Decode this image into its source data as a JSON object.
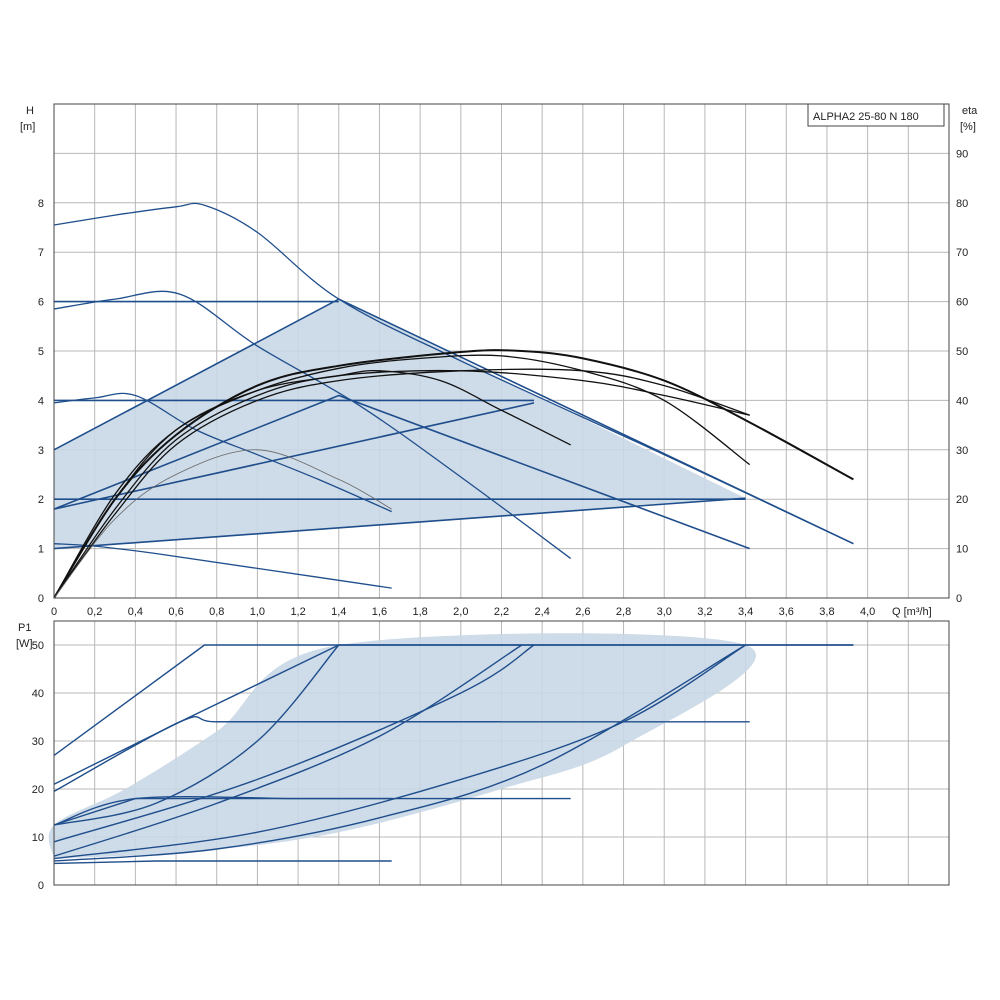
{
  "colors": {
    "grid": "#b8b8b8",
    "frame": "#444444",
    "curve": "#1f4e8c",
    "region_fill": "#c9d7e6",
    "efficiency": "#111111"
  },
  "legend_label": "ALPHA2 25-80 N 180",
  "chart_data": [
    {
      "type": "line",
      "xlabel": "Q [m³/h]",
      "ylabel_left": "H",
      "ylabel_left_unit": "[m]",
      "ylabel_right": "eta",
      "ylabel_right_unit": "[%]",
      "xlim": [
        0,
        4.4
      ],
      "ylim": [
        0,
        10
      ],
      "ylim_right": [
        0,
        100
      ],
      "x_ticks": [
        "0",
        "0,2",
        "0,4",
        "0,6",
        "0,8",
        "1,0",
        "1,2",
        "1,4",
        "1,6",
        "1,8",
        "2,0",
        "2,2",
        "2,4",
        "2,6",
        "2,8",
        "3,0",
        "3,2",
        "3,4",
        "3,6",
        "3,8",
        "4,0"
      ],
      "y_ticks": [
        "0",
        "1",
        "2",
        "3",
        "4",
        "5",
        "6",
        "7",
        "8"
      ],
      "y_right_ticks": [
        "0",
        "10",
        "20",
        "30",
        "40",
        "50",
        "60",
        "70",
        "80",
        "90"
      ],
      "grid": true,
      "legend_position": "top-right",
      "shaded_region": [
        [
          0,
          1
        ],
        [
          0,
          3
        ],
        [
          1.4,
          6.05
        ],
        [
          3.4,
          2.02
        ],
        [
          0,
          1
        ]
      ],
      "head_series": [
        {
          "x": [
            0,
            0.3,
            0.6,
            0.74,
            1.0,
            1.4,
            2.0,
            3.0,
            3.93
          ],
          "y": [
            7.55,
            7.75,
            7.92,
            7.95,
            7.4,
            6.05,
            4.8,
            2.9,
            1.1
          ]
        },
        {
          "x": [
            0,
            0.3,
            0.62,
            1.0,
            1.5,
            2.0,
            2.54
          ],
          "y": [
            5.85,
            6.05,
            6.15,
            5.1,
            3.9,
            2.45,
            0.8
          ]
        },
        {
          "x": [
            0,
            0.2,
            0.4,
            0.7,
            1.0,
            1.3,
            1.66
          ],
          "y": [
            3.95,
            4.05,
            4.1,
            3.4,
            2.9,
            2.4,
            1.75
          ]
        },
        {
          "x": [
            0,
            0.2,
            0.5,
            1.0,
            1.66
          ],
          "y": [
            1.1,
            1.05,
            0.9,
            0.6,
            0.2
          ]
        },
        {
          "x": [
            0,
            1.4
          ],
          "y": [
            6.0,
            6.0
          ]
        },
        {
          "x": [
            0,
            2.36
          ],
          "y": [
            4.0,
            4.0
          ]
        },
        {
          "x": [
            0,
            3.4
          ],
          "y": [
            2.0,
            2.0
          ]
        },
        {
          "x": [
            0,
            1.4,
            3.93
          ],
          "y": [
            3.0,
            6.05,
            1.1
          ]
        },
        {
          "x": [
            0,
            1.4,
            3.42
          ],
          "y": [
            1.8,
            4.1,
            1.0
          ]
        },
        {
          "x": [
            0,
            2.36
          ],
          "y": [
            1.8,
            3.95
          ]
        },
        {
          "x": [
            0,
            3.4
          ],
          "y": [
            1.0,
            2.02
          ]
        }
      ],
      "efficiency_series": [
        {
          "x": [
            0,
            0.3,
            0.6,
            1.0,
            1.4,
            2.0,
            2.3,
            2.6,
            3.0,
            3.4,
            3.93
          ],
          "y": [
            0,
            20,
            33,
            43,
            47,
            49.8,
            50,
            48.5,
            44,
            36,
            24
          ]
        },
        {
          "x": [
            0,
            0.3,
            0.6,
            1.0,
            1.4,
            1.8,
            2.2,
            2.6,
            3.0,
            3.42
          ],
          "y": [
            0,
            21,
            34,
            42,
            46.5,
            48.5,
            49,
            46,
            40,
            27
          ]
        },
        {
          "x": [
            0,
            0.3,
            0.6,
            1.0,
            1.4,
            1.6,
            1.9,
            2.2,
            2.54
          ],
          "y": [
            0,
            20,
            34,
            42,
            45,
            46,
            44,
            38,
            31
          ]
        },
        {
          "x": [
            0,
            0.3,
            0.6,
            1.0,
            1.4,
            2.0,
            2.6,
            3.0,
            3.42
          ],
          "y": [
            0,
            18,
            32,
            41,
            45,
            46,
            44,
            41,
            37
          ]
        },
        {
          "x": [
            0,
            0.3,
            0.6,
            1.0,
            1.4,
            2.0,
            2.6,
            3.0,
            3.42
          ],
          "y": [
            0,
            17,
            31,
            40,
            44,
            46,
            46,
            43,
            37
          ]
        },
        {
          "x": [
            0,
            0.3,
            0.6,
            1.0,
            1.4,
            1.66
          ],
          "y": [
            0,
            16,
            25,
            30,
            24,
            18
          ]
        }
      ]
    },
    {
      "type": "line",
      "xlabel": "",
      "ylabel": "P1",
      "ylabel_unit": "[W]",
      "xlim": [
        0,
        4.4
      ],
      "ylim": [
        0,
        55
      ],
      "y_ticks": [
        "0",
        "10",
        "20",
        "30",
        "40",
        "50"
      ],
      "grid": true,
      "shaded_region": [
        [
          0,
          5.5
        ],
        [
          0.7,
          7
        ],
        [
          1.4,
          11
        ],
        [
          2.2,
          20
        ],
        [
          2.8,
          29
        ],
        [
          3.4,
          50
        ],
        [
          1.4,
          50
        ],
        [
          0.8,
          32
        ],
        [
          0.35,
          20
        ],
        [
          0,
          12.5
        ],
        [
          0,
          5.5
        ]
      ],
      "power_series": [
        {
          "x": [
            0,
            0.74,
            3.93
          ],
          "y": [
            27,
            50,
            50
          ]
        },
        {
          "x": [
            0,
            0.62,
            0.8,
            1.4,
            2.2
          ],
          "y": [
            19.5,
            34,
            34,
            34,
            34
          ]
        },
        {
          "x": [
            0,
            0.62,
            1.4
          ],
          "y": [
            21,
            34,
            50
          ]
        },
        {
          "x": [
            0,
            0.4,
            1.66
          ],
          "y": [
            12.5,
            18,
            18
          ]
        },
        {
          "x": [
            0,
            0.4,
            1.2,
            1.66,
            2.54
          ],
          "y": [
            12.5,
            18,
            18,
            18,
            18
          ]
        },
        {
          "x": [
            0,
            0.5,
            1.66
          ],
          "y": [
            4.5,
            5,
            5
          ]
        },
        {
          "x": [
            0,
            0.5,
            1.0,
            1.4
          ],
          "y": [
            12.5,
            17,
            30,
            50
          ]
        },
        {
          "x": [
            0,
            0.8,
            1.6,
            2.3
          ],
          "y": [
            6,
            17,
            31,
            50
          ]
        },
        {
          "x": [
            0,
            1.0,
            2.0,
            2.36
          ],
          "y": [
            9,
            22,
            40,
            50
          ]
        },
        {
          "x": [
            0,
            1.0,
            2.0,
            2.8,
            3.4
          ],
          "y": [
            5.5,
            11,
            22,
            34,
            50
          ]
        },
        {
          "x": [
            0,
            0.8,
            1.6,
            2.4,
            3.4
          ],
          "y": [
            5,
            7.5,
            14,
            25,
            50
          ]
        },
        {
          "x": [
            1.4,
            3.93
          ],
          "y": [
            50,
            50
          ]
        },
        {
          "x": [
            0.8,
            3.42
          ],
          "y": [
            34,
            34
          ]
        }
      ]
    }
  ]
}
